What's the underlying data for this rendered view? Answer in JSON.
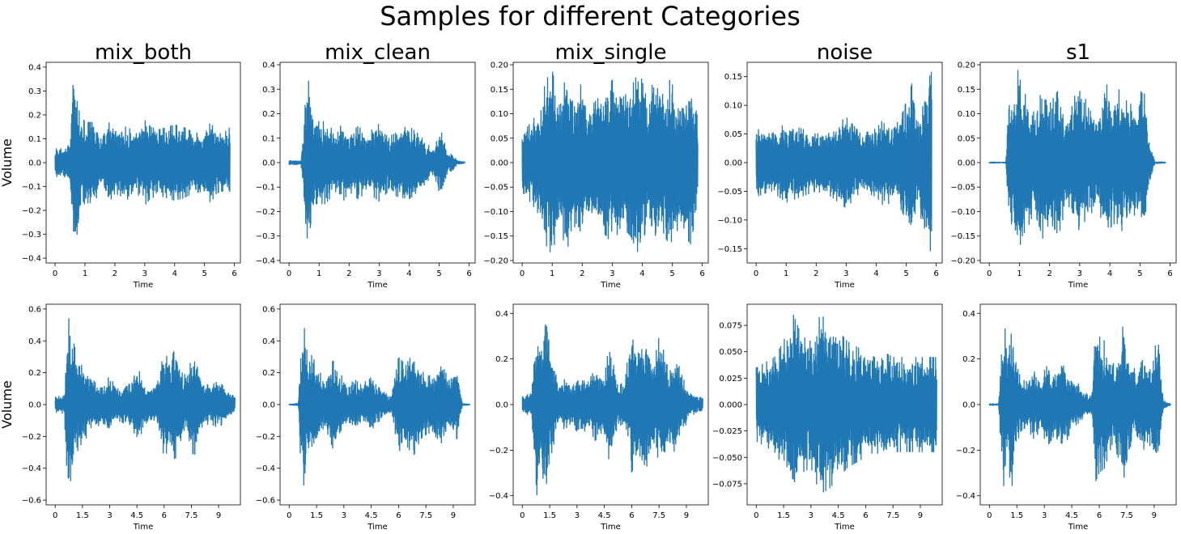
{
  "title": "Samples for different Categories",
  "colors": {
    "wave": "#1f77b4",
    "axes": "#000000",
    "background": "#ffffff"
  },
  "chart_data": [
    {
      "type": "line",
      "title": "mix_both",
      "xlabel": "Time",
      "ylabel": "Volume",
      "xlim": [
        -0.3,
        6.2
      ],
      "ylim": [
        -0.42,
        0.42
      ],
      "duration": 5.85,
      "xticks": [
        0,
        1,
        2,
        3,
        4,
        5,
        6
      ],
      "xtick_labels": [
        "0",
        "1",
        "2",
        "3",
        "4",
        "5",
        "6"
      ],
      "yticks": [
        -0.4,
        -0.3,
        -0.2,
        -0.1,
        0,
        0.1,
        0.2,
        0.3,
        0.4
      ],
      "ytick_labels": [
        "−0.4",
        "−0.3",
        "−0.2",
        "−0.1",
        "0.0",
        "0.1",
        "0.2",
        "0.3",
        "0.4"
      ],
      "envelope": {
        "t": [
          0,
          0.3,
          0.5,
          0.62,
          0.68,
          0.8,
          1.0,
          1.3,
          1.5,
          1.8,
          2.0,
          2.5,
          2.7,
          3.0,
          3.2,
          3.5,
          4.0,
          4.3,
          4.6,
          5.0,
          5.2,
          5.4,
          5.6,
          5.85
        ],
        "amp": [
          0.06,
          0.06,
          0.08,
          0.38,
          0.37,
          0.22,
          0.17,
          0.17,
          0.12,
          0.17,
          0.13,
          0.16,
          0.12,
          0.18,
          0.15,
          0.14,
          0.16,
          0.15,
          0.13,
          0.12,
          0.17,
          0.13,
          0.12,
          0.15
        ]
      }
    },
    {
      "type": "line",
      "title": "mix_clean",
      "xlabel": "Time",
      "ylabel": "",
      "xlim": [
        -0.3,
        6.2
      ],
      "ylim": [
        -0.41,
        0.41
      ],
      "duration": 5.85,
      "xticks": [
        0,
        1,
        2,
        3,
        4,
        5,
        6
      ],
      "xtick_labels": [
        "0",
        "1",
        "2",
        "3",
        "4",
        "5",
        "6"
      ],
      "yticks": [
        -0.4,
        -0.3,
        -0.2,
        -0.1,
        0,
        0.1,
        0.2,
        0.3,
        0.4
      ],
      "ytick_labels": [
        "−0.4",
        "−0.3",
        "−0.2",
        "−0.1",
        "0.0",
        "0.1",
        "0.2",
        "0.3",
        "0.4"
      ],
      "envelope": {
        "t": [
          0,
          0.4,
          0.45,
          0.55,
          0.62,
          0.75,
          0.9,
          1.2,
          1.5,
          1.8,
          2.0,
          2.3,
          2.6,
          3.0,
          3.3,
          3.6,
          4.0,
          4.3,
          4.6,
          4.8,
          5.0,
          5.1,
          5.3,
          5.45,
          5.6,
          5.85
        ],
        "amp": [
          0.01,
          0.01,
          0.08,
          0.3,
          0.37,
          0.22,
          0.17,
          0.17,
          0.13,
          0.16,
          0.12,
          0.15,
          0.12,
          0.16,
          0.12,
          0.14,
          0.15,
          0.12,
          0.08,
          0.05,
          0.14,
          0.12,
          0.03,
          0.04,
          0.01,
          0.005
        ]
      }
    },
    {
      "type": "line",
      "title": "mix_single",
      "xlabel": "Time",
      "ylabel": "",
      "xlim": [
        -0.3,
        6.2
      ],
      "ylim": [
        -0.205,
        0.205
      ],
      "duration": 5.85,
      "xticks": [
        0,
        1,
        2,
        3,
        4,
        5,
        6
      ],
      "xtick_labels": [
        "0",
        "1",
        "2",
        "3",
        "4",
        "5",
        "6"
      ],
      "yticks": [
        -0.2,
        -0.15,
        -0.1,
        -0.05,
        0,
        0.05,
        0.1,
        0.15,
        0.2
      ],
      "ytick_labels": [
        "−0.20",
        "−0.15",
        "−0.10",
        "−0.05",
        "0.00",
        "0.05",
        "0.10",
        "0.15",
        "0.20"
      ],
      "envelope": {
        "t": [
          0,
          0.5,
          0.8,
          1.0,
          1.2,
          1.5,
          1.7,
          1.9,
          2.2,
          2.5,
          2.8,
          3.0,
          3.3,
          3.6,
          3.9,
          4.2,
          4.4,
          4.6,
          4.9,
          5.1,
          5.3,
          5.6,
          5.85
        ],
        "amp": [
          0.06,
          0.1,
          0.17,
          0.19,
          0.13,
          0.18,
          0.12,
          0.17,
          0.11,
          0.13,
          0.15,
          0.17,
          0.13,
          0.15,
          0.19,
          0.12,
          0.18,
          0.13,
          0.17,
          0.15,
          0.12,
          0.17,
          0.09
        ]
      }
    },
    {
      "type": "line",
      "title": "noise",
      "xlabel": "Time",
      "ylabel": "",
      "xlim": [
        -0.3,
        6.2
      ],
      "ylim": [
        -0.175,
        0.175
      ],
      "duration": 5.85,
      "xticks": [
        0,
        1,
        2,
        3,
        4,
        5,
        6
      ],
      "xtick_labels": [
        "0",
        "1",
        "2",
        "3",
        "4",
        "5",
        "6"
      ],
      "yticks": [
        -0.15,
        -0.1,
        -0.05,
        0,
        0.05,
        0.1,
        0.15
      ],
      "ytick_labels": [
        "−0.15",
        "−0.10",
        "−0.05",
        "0.00",
        "0.05",
        "0.10",
        "0.15"
      ],
      "envelope": {
        "t": [
          0,
          0.5,
          1.0,
          1.5,
          2.0,
          2.5,
          3.0,
          3.5,
          4.0,
          4.3,
          4.6,
          4.9,
          5.2,
          5.4,
          5.6,
          5.85
        ],
        "amp": [
          0.06,
          0.05,
          0.07,
          0.06,
          0.05,
          0.06,
          0.08,
          0.05,
          0.06,
          0.08,
          0.06,
          0.09,
          0.14,
          0.07,
          0.13,
          0.16
        ]
      }
    },
    {
      "type": "line",
      "title": "s1",
      "xlabel": "Time",
      "ylabel": "",
      "xlim": [
        -0.3,
        6.2
      ],
      "ylim": [
        -0.205,
        0.205
      ],
      "duration": 5.85,
      "xticks": [
        0,
        1,
        2,
        3,
        4,
        5,
        6
      ],
      "xtick_labels": [
        "0",
        "1",
        "2",
        "3",
        "4",
        "5",
        "6"
      ],
      "yticks": [
        -0.2,
        -0.15,
        -0.1,
        -0.05,
        0,
        0.05,
        0.1,
        0.15,
        0.2
      ],
      "ytick_labels": [
        "−0.20",
        "−0.15",
        "−0.10",
        "−0.05",
        "0.00",
        "0.05",
        "0.10",
        "0.15",
        "0.20"
      ],
      "envelope": {
        "t": [
          0,
          0.55,
          0.6,
          0.7,
          0.8,
          0.95,
          1.1,
          1.3,
          1.5,
          1.8,
          2.0,
          2.3,
          2.6,
          2.8,
          3.0,
          3.3,
          3.6,
          3.9,
          4.1,
          4.3,
          4.5,
          4.7,
          4.9,
          5.1,
          5.3,
          5.5,
          5.85
        ],
        "amp": [
          0.002,
          0.002,
          0.08,
          0.14,
          0.1,
          0.19,
          0.15,
          0.13,
          0.1,
          0.16,
          0.12,
          0.15,
          0.08,
          0.13,
          0.17,
          0.11,
          0.09,
          0.16,
          0.12,
          0.15,
          0.13,
          0.12,
          0.1,
          0.17,
          0.05,
          0.003,
          0.002
        ]
      }
    },
    {
      "type": "line",
      "title": "",
      "xlabel": "Time",
      "ylabel": "Volume",
      "xlim": [
        -0.5,
        10.2
      ],
      "ylim": [
        -0.63,
        0.63
      ],
      "duration": 9.9,
      "xticks": [
        0,
        1.5,
        3,
        4.5,
        6,
        7.5,
        9
      ],
      "xtick_labels": [
        "0",
        "1.5",
        "3",
        "4.5",
        "6",
        "7.5",
        "9"
      ],
      "yticks": [
        -0.6,
        -0.4,
        -0.2,
        0,
        0.2,
        0.4,
        0.6
      ],
      "ytick_labels": [
        "−0.6",
        "−0.4",
        "−0.2",
        "0.0",
        "0.2",
        "0.4",
        "0.6"
      ],
      "envelope": {
        "t": [
          0,
          0.5,
          0.7,
          0.9,
          1.2,
          1.5,
          1.8,
          2.2,
          2.6,
          3.0,
          3.4,
          3.8,
          4.2,
          4.6,
          5.0,
          5.5,
          6.0,
          6.3,
          6.6,
          7.0,
          7.3,
          7.6,
          8.0,
          8.5,
          9.0,
          9.4,
          9.9
        ],
        "amp": [
          0.05,
          0.06,
          0.57,
          0.45,
          0.3,
          0.24,
          0.2,
          0.14,
          0.13,
          0.18,
          0.1,
          0.12,
          0.16,
          0.22,
          0.12,
          0.1,
          0.33,
          0.28,
          0.35,
          0.2,
          0.18,
          0.36,
          0.15,
          0.12,
          0.15,
          0.1,
          0.05
        ]
      }
    },
    {
      "type": "line",
      "title": "",
      "xlabel": "Time",
      "ylabel": "",
      "xlim": [
        -0.5,
        10.2
      ],
      "ylim": [
        -0.63,
        0.63
      ],
      "duration": 9.9,
      "xticks": [
        0,
        1.5,
        3,
        4.5,
        6,
        7.5,
        9
      ],
      "xtick_labels": [
        "0",
        "1.5",
        "3",
        "4.5",
        "6",
        "7.5",
        "9"
      ],
      "yticks": [
        -0.6,
        -0.4,
        -0.2,
        0,
        0.2,
        0.4,
        0.6
      ],
      "ytick_labels": [
        "−0.6",
        "−0.4",
        "−0.2",
        "0.0",
        "0.2",
        "0.4",
        "0.6"
      ],
      "envelope": {
        "t": [
          0,
          0.5,
          0.6,
          0.8,
          1.0,
          1.3,
          1.6,
          2.0,
          2.4,
          2.8,
          3.2,
          3.6,
          4.0,
          4.4,
          4.8,
          5.2,
          5.6,
          6.0,
          6.4,
          6.8,
          7.2,
          7.6,
          8.0,
          8.4,
          8.8,
          9.2,
          9.5,
          9.9
        ],
        "amp": [
          0.005,
          0.01,
          0.3,
          0.58,
          0.35,
          0.3,
          0.22,
          0.15,
          0.28,
          0.2,
          0.12,
          0.16,
          0.12,
          0.18,
          0.12,
          0.08,
          0.05,
          0.3,
          0.25,
          0.33,
          0.22,
          0.18,
          0.2,
          0.25,
          0.15,
          0.22,
          0.01,
          0.005
        ]
      }
    },
    {
      "type": "line",
      "title": "",
      "xlabel": "Time",
      "ylabel": "",
      "xlim": [
        -0.5,
        10.2
      ],
      "ylim": [
        -0.44,
        0.44
      ],
      "duration": 9.9,
      "xticks": [
        0,
        1.5,
        3,
        4.5,
        6,
        7.5,
        9
      ],
      "xtick_labels": [
        "0",
        "1.5",
        "3",
        "4.5",
        "6",
        "7.5",
        "9"
      ],
      "yticks": [
        -0.4,
        -0.2,
        0,
        0.2,
        0.4
      ],
      "ytick_labels": [
        "−0.4",
        "−0.2",
        "0.0",
        "0.2",
        "0.4"
      ],
      "envelope": {
        "t": [
          0,
          0.5,
          0.8,
          1.0,
          1.3,
          1.6,
          2.0,
          2.4,
          2.8,
          3.2,
          3.6,
          4.0,
          4.4,
          4.8,
          5.2,
          5.6,
          6.0,
          6.4,
          6.8,
          7.2,
          7.6,
          8.0,
          8.4,
          8.8,
          9.2,
          9.6,
          9.9
        ],
        "amp": [
          0.04,
          0.05,
          0.4,
          0.25,
          0.42,
          0.22,
          0.08,
          0.12,
          0.1,
          0.14,
          0.1,
          0.16,
          0.12,
          0.26,
          0.1,
          0.12,
          0.3,
          0.22,
          0.28,
          0.18,
          0.34,
          0.15,
          0.22,
          0.12,
          0.05,
          0.04,
          0.03
        ]
      }
    },
    {
      "type": "line",
      "title": "",
      "xlabel": "Time",
      "ylabel": "",
      "xlim": [
        -0.5,
        10.2
      ],
      "ylim": [
        -0.095,
        0.095
      ],
      "duration": 9.9,
      "xticks": [
        0,
        1.5,
        3,
        4.5,
        6,
        7.5,
        9
      ],
      "xtick_labels": [
        "0",
        "1.5",
        "3",
        "4.5",
        "6",
        "7.5",
        "9"
      ],
      "yticks": [
        -0.075,
        -0.05,
        -0.025,
        0,
        0.025,
        0.05,
        0.075
      ],
      "ytick_labels": [
        "−0.075",
        "−0.050",
        "−0.025",
        "0.000",
        "0.025",
        "0.050",
        "0.075"
      ],
      "envelope": {
        "t": [
          0,
          0.5,
          1.0,
          1.5,
          2.0,
          2.5,
          3.0,
          3.5,
          4.0,
          4.5,
          5.0,
          5.5,
          6.0,
          6.5,
          7.0,
          7.5,
          8.0,
          8.5,
          9.0,
          9.5,
          9.9
        ],
        "amp": [
          0.035,
          0.04,
          0.045,
          0.06,
          0.087,
          0.065,
          0.06,
          0.085,
          0.08,
          0.07,
          0.06,
          0.055,
          0.05,
          0.045,
          0.05,
          0.045,
          0.045,
          0.045,
          0.045,
          0.045,
          0.045
        ]
      }
    },
    {
      "type": "line",
      "title": "",
      "xlabel": "Time",
      "ylabel": "",
      "xlim": [
        -0.5,
        10.2
      ],
      "ylim": [
        -0.44,
        0.44
      ],
      "duration": 9.9,
      "xticks": [
        0,
        1.5,
        3,
        4.5,
        6,
        7.5,
        9
      ],
      "xtick_labels": [
        "0",
        "1.5",
        "3",
        "4.5",
        "6",
        "7.5",
        "9"
      ],
      "yticks": [
        -0.4,
        -0.2,
        0,
        0.2,
        0.4
      ],
      "ytick_labels": [
        "−0.4",
        "−0.2",
        "0.0",
        "0.2",
        "0.4"
      ],
      "envelope": {
        "t": [
          0,
          0.5,
          0.6,
          0.8,
          1.0,
          1.2,
          1.4,
          1.7,
          2.0,
          2.4,
          2.8,
          3.2,
          3.6,
          4.0,
          4.4,
          4.8,
          5.2,
          5.6,
          5.8,
          6.0,
          6.3,
          6.6,
          7.0,
          7.3,
          7.6,
          8.0,
          8.4,
          8.8,
          9.2,
          9.5,
          9.9
        ],
        "amp": [
          0.005,
          0.005,
          0.15,
          0.38,
          0.22,
          0.4,
          0.2,
          0.12,
          0.1,
          0.15,
          0.12,
          0.18,
          0.13,
          0.22,
          0.12,
          0.1,
          0.05,
          0.05,
          0.34,
          0.3,
          0.28,
          0.2,
          0.22,
          0.35,
          0.2,
          0.15,
          0.2,
          0.18,
          0.3,
          0.02,
          0.005
        ]
      }
    }
  ]
}
